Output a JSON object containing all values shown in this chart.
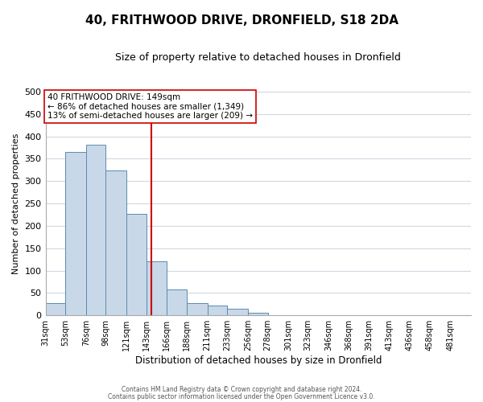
{
  "title": "40, FRITHWOOD DRIVE, DRONFIELD, S18 2DA",
  "subtitle": "Size of property relative to detached houses in Dronfield",
  "xlabel": "Distribution of detached houses by size in Dronfield",
  "ylabel": "Number of detached properties",
  "bin_labels": [
    "31sqm",
    "53sqm",
    "76sqm",
    "98sqm",
    "121sqm",
    "143sqm",
    "166sqm",
    "188sqm",
    "211sqm",
    "233sqm",
    "256sqm",
    "278sqm",
    "301sqm",
    "323sqm",
    "346sqm",
    "368sqm",
    "391sqm",
    "413sqm",
    "436sqm",
    "458sqm",
    "481sqm"
  ],
  "bin_edges": [
    31,
    53,
    76,
    98,
    121,
    143,
    166,
    188,
    211,
    233,
    256,
    278,
    301,
    323,
    346,
    368,
    391,
    413,
    436,
    458,
    481
  ],
  "bar_heights": [
    27,
    365,
    382,
    323,
    226,
    120,
    58,
    27,
    22,
    15,
    5,
    1,
    0,
    0,
    0,
    0,
    0,
    0,
    0,
    0,
    1
  ],
  "bar_color": "#c8d8e8",
  "bar_edge_color": "#5a8ab0",
  "property_line_x": 149,
  "property_line_color": "#cc0000",
  "annotation_title": "40 FRITHWOOD DRIVE: 149sqm",
  "annotation_line1": "← 86% of detached houses are smaller (1,349)",
  "annotation_line2": "13% of semi-detached houses are larger (209) →",
  "annotation_box_color": "#ffffff",
  "annotation_box_edge_color": "#cc0000",
  "ylim": [
    0,
    500
  ],
  "yticks": [
    0,
    50,
    100,
    150,
    200,
    250,
    300,
    350,
    400,
    450,
    500
  ],
  "footer_line1": "Contains HM Land Registry data © Crown copyright and database right 2024.",
  "footer_line2": "Contains public sector information licensed under the Open Government Licence v3.0.",
  "background_color": "#ffffff",
  "grid_color": "#d0d8e0"
}
